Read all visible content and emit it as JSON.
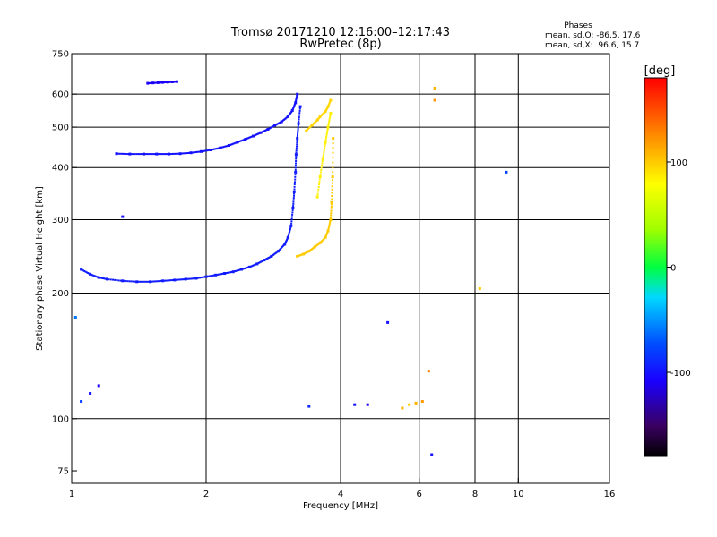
{
  "chart_data": {
    "type": "scatter",
    "title": "Tromsø 20171210 12:16:00–12:17:43",
    "subtitle": "RwPretec (8p)",
    "stats": {
      "heading": "Phases",
      "line_o": "mean, sd,O: -86.5, 17.6",
      "line_x": "mean, sd,X:  96.6, 15.7"
    },
    "xlabel": "Frequency [MHz]",
    "ylabel": "Stationary phase Virtual Height [km]",
    "x_scale": "log",
    "y_scale": "log",
    "xlim": [
      1,
      16
    ],
    "ylim": [
      70,
      750
    ],
    "x_ticks": [
      1,
      2,
      4,
      6,
      8,
      10,
      16
    ],
    "y_ticks": [
      75,
      100,
      200,
      300,
      400,
      500,
      600,
      750
    ],
    "x_gridlines": [
      2,
      4,
      6,
      8,
      10
    ],
    "y_gridlines": [
      100,
      200,
      300,
      400,
      500,
      600
    ],
    "colorbar": {
      "label": "[deg]",
      "min": -180,
      "max": 180,
      "ticks": [
        -100,
        0,
        100
      ]
    },
    "traces": [
      {
        "x": [
          1.26,
          1.35,
          1.45,
          1.55,
          1.65,
          1.75,
          1.85,
          1.95,
          2.05,
          2.15,
          2.25,
          2.35,
          2.45,
          2.55,
          2.65,
          2.75,
          2.85,
          2.95,
          3.05,
          3.12,
          3.17,
          3.2
        ],
        "y": [
          432,
          431,
          431,
          431,
          431,
          432,
          434,
          437,
          441,
          446,
          452,
          460,
          468,
          476,
          485,
          494,
          505,
          515,
          530,
          548,
          572,
          600
        ],
        "phase": -100
      },
      {
        "x": [
          1.05,
          1.1,
          1.15,
          1.2,
          1.3,
          1.4,
          1.5,
          1.6,
          1.7,
          1.8,
          1.9,
          2.0,
          2.1,
          2.2,
          2.3,
          2.4,
          2.5,
          2.6,
          2.7,
          2.8,
          2.9,
          3.0,
          3.05,
          3.1,
          3.13,
          3.15,
          3.17,
          3.18,
          3.2,
          3.22,
          3.25
        ],
        "y": [
          228,
          222,
          218,
          216,
          214,
          213,
          213,
          214,
          215,
          216,
          217,
          219,
          221,
          223,
          225,
          228,
          231,
          235,
          240,
          245,
          252,
          262,
          272,
          290,
          320,
          350,
          390,
          430,
          470,
          510,
          560
        ],
        "phase": -95
      },
      {
        "x": [
          1.48,
          1.52,
          1.56,
          1.6,
          1.64,
          1.68,
          1.72
        ],
        "y": [
          637,
          638,
          639,
          640,
          641,
          642,
          643
        ],
        "phase": -110
      },
      {
        "x": [
          3.2,
          3.3,
          3.4,
          3.5,
          3.6,
          3.7,
          3.75,
          3.8,
          3.82,
          3.84,
          3.85
        ],
        "y": [
          245,
          248,
          252,
          258,
          264,
          272,
          282,
          300,
          330,
          380,
          470
        ],
        "phase": 100
      },
      {
        "x": [
          3.35,
          3.45,
          3.55,
          3.6,
          3.7,
          3.75,
          3.8
        ],
        "y": [
          490,
          505,
          520,
          530,
          545,
          560,
          580
        ],
        "phase": 95
      },
      {
        "x": [
          3.55,
          3.6,
          3.65,
          3.7,
          3.75,
          3.8
        ],
        "y": [
          340,
          380,
          420,
          460,
          500,
          540
        ],
        "phase": 85
      }
    ],
    "scatter_points": [
      {
        "x": 5.7,
        "y": 108,
        "phase": 100
      },
      {
        "x": 5.9,
        "y": 109,
        "phase": 110
      },
      {
        "x": 6.1,
        "y": 110,
        "phase": 120
      },
      {
        "x": 5.5,
        "y": 106,
        "phase": 110
      },
      {
        "x": 6.5,
        "y": 620,
        "phase": 110
      },
      {
        "x": 6.5,
        "y": 580,
        "phase": 120
      },
      {
        "x": 5.1,
        "y": 170,
        "phase": -100
      },
      {
        "x": 6.3,
        "y": 130,
        "phase": 130
      },
      {
        "x": 6.4,
        "y": 82,
        "phase": -100
      },
      {
        "x": 1.1,
        "y": 115,
        "phase": -100
      },
      {
        "x": 1.05,
        "y": 110,
        "phase": -80
      },
      {
        "x": 1.15,
        "y": 120,
        "phase": -110
      },
      {
        "x": 1.02,
        "y": 175,
        "phase": -60
      },
      {
        "x": 1.3,
        "y": 305,
        "phase": -100
      },
      {
        "x": 9.4,
        "y": 390,
        "phase": -80
      },
      {
        "x": 8.2,
        "y": 205,
        "phase": 100
      },
      {
        "x": 4.3,
        "y": 108,
        "phase": -100
      },
      {
        "x": 4.6,
        "y": 108,
        "phase": -110
      },
      {
        "x": 3.4,
        "y": 107,
        "phase": -90
      }
    ]
  }
}
